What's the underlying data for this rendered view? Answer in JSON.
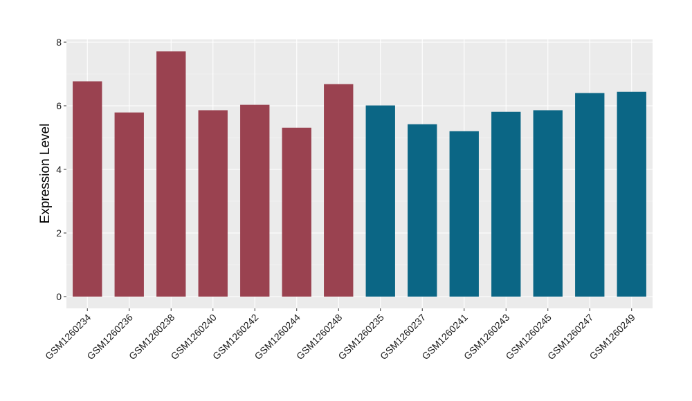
{
  "chart_data": {
    "type": "bar",
    "title": "",
    "xlabel": "",
    "ylabel": "Expression Level",
    "ylim": [
      0,
      8.1
    ],
    "yticks": [
      0,
      2,
      4,
      6,
      8
    ],
    "grid": true,
    "legend": "none",
    "colors": {
      "panel_background": "#EBEBEB",
      "grid_major": "#FFFFFF",
      "grid_minor": "#F5F5F5",
      "group_a": "#9A4250",
      "group_b": "#0B6685"
    },
    "categories": [
      "GSM1260234",
      "GSM1260236",
      "GSM1260238",
      "GSM1260240",
      "GSM1260242",
      "GSM1260244",
      "GSM1260248",
      "GSM1260235",
      "GSM1260237",
      "GSM1260241",
      "GSM1260243",
      "GSM1260245",
      "GSM1260247",
      "GSM1260249"
    ],
    "values": [
      6.77,
      5.79,
      7.71,
      5.86,
      6.03,
      5.31,
      6.68,
      6.01,
      5.42,
      5.2,
      5.81,
      5.86,
      6.4,
      6.44
    ],
    "bar_groups": [
      "a",
      "a",
      "a",
      "a",
      "a",
      "a",
      "a",
      "b",
      "b",
      "b",
      "b",
      "b",
      "b",
      "b"
    ]
  }
}
